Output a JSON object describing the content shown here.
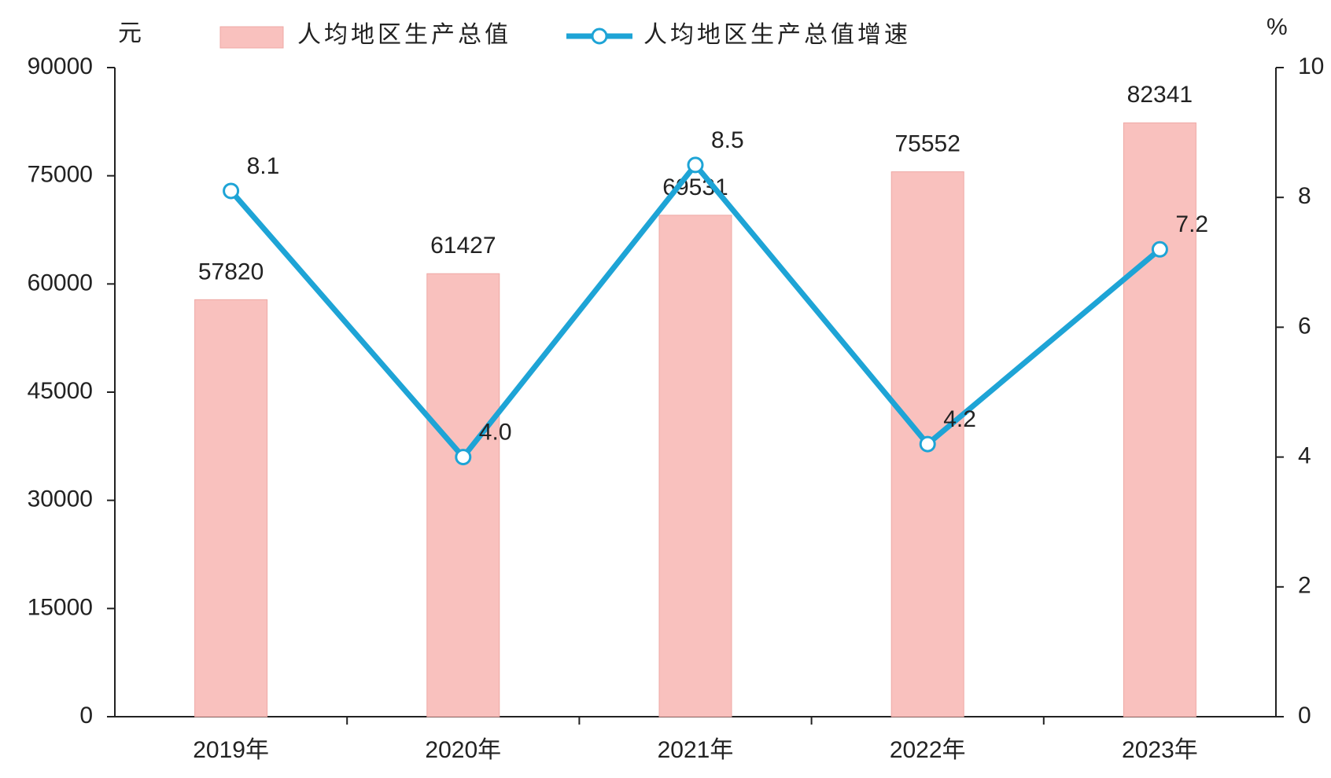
{
  "chart_data": {
    "type": "bar",
    "y_unit": "元",
    "y2_unit": "%",
    "categories": [
      "2019年",
      "2020年",
      "2021年",
      "2022年",
      "2023年"
    ],
    "series": [
      {
        "name": "人均地区生产总值",
        "type": "bar",
        "color": "#f9c1be",
        "values": [
          57820,
          61427,
          69531,
          75552,
          82341
        ]
      },
      {
        "name": "人均地区生产总值增速",
        "type": "line",
        "axis": "y2",
        "color": "#1ea4d6",
        "values": [
          8.1,
          4.0,
          8.5,
          4.2,
          7.2
        ],
        "value_labels": [
          "8.1",
          "4.0",
          "8.5",
          "4.2",
          "7.2"
        ]
      }
    ],
    "ylim": [
      0,
      90000
    ],
    "yticks": [
      0,
      15000,
      30000,
      45000,
      60000,
      75000,
      90000
    ],
    "y2lim": [
      0,
      10
    ],
    "y2ticks": [
      0,
      2,
      4,
      6,
      8,
      10
    ],
    "legend": "top",
    "grid": false
  }
}
